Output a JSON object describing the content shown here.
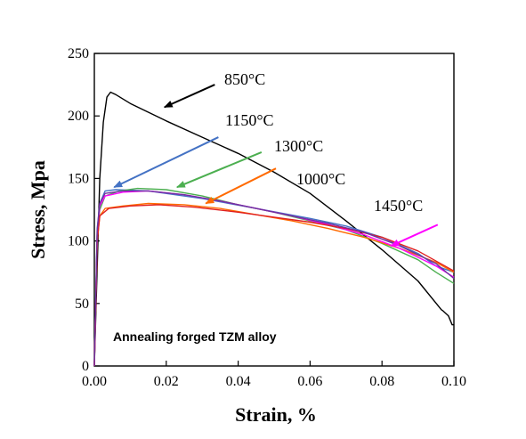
{
  "chart_data": {
    "type": "line",
    "title": "",
    "xlabel": "Strain, %",
    "ylabel": "Stress, Mpa",
    "xlim": [
      0,
      0.1
    ],
    "ylim": [
      0,
      250
    ],
    "x_ticks": [
      "0.00",
      "0.02",
      "0.04",
      "0.06",
      "0.08",
      "0.10"
    ],
    "x_tick_values": [
      0,
      0.02,
      0.04,
      0.06,
      0.08,
      0.1
    ],
    "y_ticks": [
      "0",
      "50",
      "100",
      "150",
      "200",
      "250"
    ],
    "y_tick_values": [
      0,
      50,
      100,
      150,
      200,
      250
    ],
    "grid": false,
    "annotation_text": "Annealing forged TZM alloy",
    "series": [
      {
        "name": "850°C",
        "color": "#000000",
        "points": [
          [
            0,
            0
          ],
          [
            0.0015,
            150
          ],
          [
            0.0025,
            195
          ],
          [
            0.0035,
            215
          ],
          [
            0.0045,
            219
          ],
          [
            0.006,
            217
          ],
          [
            0.01,
            210
          ],
          [
            0.02,
            196
          ],
          [
            0.03,
            183
          ],
          [
            0.04,
            170
          ],
          [
            0.05,
            155
          ],
          [
            0.06,
            138
          ],
          [
            0.07,
            116
          ],
          [
            0.08,
            93
          ],
          [
            0.09,
            68
          ],
          [
            0.0965,
            45
          ],
          [
            0.097,
            44
          ],
          [
            0.0985,
            40
          ],
          [
            0.0995,
            33
          ],
          [
            0.1,
            33
          ]
        ]
      },
      {
        "name": "1150°C",
        "color": "#4472c4",
        "points": [
          [
            0,
            0
          ],
          [
            0.0008,
            110
          ],
          [
            0.0015,
            130
          ],
          [
            0.003,
            140
          ],
          [
            0.006,
            141
          ],
          [
            0.015,
            140
          ],
          [
            0.03,
            134
          ],
          [
            0.045,
            126
          ],
          [
            0.06,
            118
          ],
          [
            0.07,
            112
          ],
          [
            0.08,
            103
          ],
          [
            0.09,
            90
          ],
          [
            0.095,
            80
          ],
          [
            0.1,
            75
          ]
        ]
      },
      {
        "name": "1300°C",
        "color": "#4caf50",
        "points": [
          [
            0,
            0
          ],
          [
            0.0008,
            105
          ],
          [
            0.0015,
            125
          ],
          [
            0.003,
            136
          ],
          [
            0.007,
            140
          ],
          [
            0.012,
            142
          ],
          [
            0.02,
            141
          ],
          [
            0.03,
            136
          ],
          [
            0.04,
            129
          ],
          [
            0.05,
            123
          ],
          [
            0.06,
            116
          ],
          [
            0.07,
            109
          ],
          [
            0.08,
            98
          ],
          [
            0.09,
            85
          ],
          [
            0.095,
            75
          ],
          [
            0.1,
            66
          ]
        ]
      },
      {
        "name": "1000°C",
        "color": "#ff6a00",
        "points": [
          [
            0,
            0
          ],
          [
            0.0008,
            100
          ],
          [
            0.0015,
            120
          ],
          [
            0.003,
            126
          ],
          [
            0.008,
            128
          ],
          [
            0.015,
            130
          ],
          [
            0.025,
            129
          ],
          [
            0.035,
            126
          ],
          [
            0.045,
            121
          ],
          [
            0.055,
            116
          ],
          [
            0.065,
            110
          ],
          [
            0.075,
            103
          ],
          [
            0.085,
            94
          ],
          [
            0.095,
            83
          ],
          [
            0.1,
            75
          ]
        ]
      },
      {
        "name": "1450°C",
        "color": "#ff00ff",
        "points": [
          [
            0,
            0
          ],
          [
            0.0008,
            105
          ],
          [
            0.0015,
            128
          ],
          [
            0.003,
            136
          ],
          [
            0.008,
            139
          ],
          [
            0.015,
            140
          ],
          [
            0.025,
            137
          ],
          [
            0.035,
            132
          ],
          [
            0.045,
            126
          ],
          [
            0.055,
            120
          ],
          [
            0.065,
            113
          ],
          [
            0.075,
            105
          ],
          [
            0.085,
            94
          ],
          [
            0.095,
            80
          ],
          [
            0.1,
            71
          ]
        ]
      },
      {
        "name": "",
        "color": "#e02020",
        "points": [
          [
            0,
            0
          ],
          [
            0.0008,
            100
          ],
          [
            0.0015,
            120
          ],
          [
            0.004,
            126
          ],
          [
            0.01,
            128
          ],
          [
            0.018,
            129
          ],
          [
            0.028,
            127
          ],
          [
            0.04,
            123
          ],
          [
            0.05,
            119
          ],
          [
            0.06,
            115
          ],
          [
            0.07,
            110
          ],
          [
            0.08,
            103
          ],
          [
            0.09,
            92
          ],
          [
            0.1,
            76
          ]
        ]
      },
      {
        "name": "",
        "color": "#7030a0",
        "points": [
          [
            0,
            0
          ],
          [
            0.0008,
            108
          ],
          [
            0.0015,
            130
          ],
          [
            0.003,
            138
          ],
          [
            0.008,
            140
          ],
          [
            0.015,
            140
          ],
          [
            0.025,
            137
          ],
          [
            0.035,
            132
          ],
          [
            0.045,
            126
          ],
          [
            0.055,
            120
          ],
          [
            0.065,
            114
          ],
          [
            0.075,
            107
          ],
          [
            0.085,
            96
          ],
          [
            0.095,
            82
          ],
          [
            0.1,
            70
          ]
        ]
      }
    ],
    "labels": [
      {
        "text": "850°C",
        "color": "#000000",
        "target_x": 0.0195,
        "target_y": 207,
        "arrow_from_x": 0.0335,
        "arrow_from_y": 225
      },
      {
        "text": "1150°C",
        "color": "#4472c4",
        "target_x": 0.0055,
        "target_y": 143,
        "arrow_from_x": 0.0345,
        "arrow_from_y": 183
      },
      {
        "text": "1300°C",
        "color": "#4caf50",
        "target_x": 0.023,
        "target_y": 143,
        "arrow_from_x": 0.0465,
        "arrow_from_y": 171
      },
      {
        "text": "1000°C",
        "color": "#ff6a00",
        "target_x": 0.031,
        "target_y": 130,
        "arrow_from_x": 0.0505,
        "arrow_from_y": 158
      },
      {
        "text": "1450°C",
        "color": "#ff00ff",
        "target_x": 0.0825,
        "target_y": 96,
        "arrow_from_x": 0.0955,
        "arrow_from_y": 113
      }
    ]
  }
}
